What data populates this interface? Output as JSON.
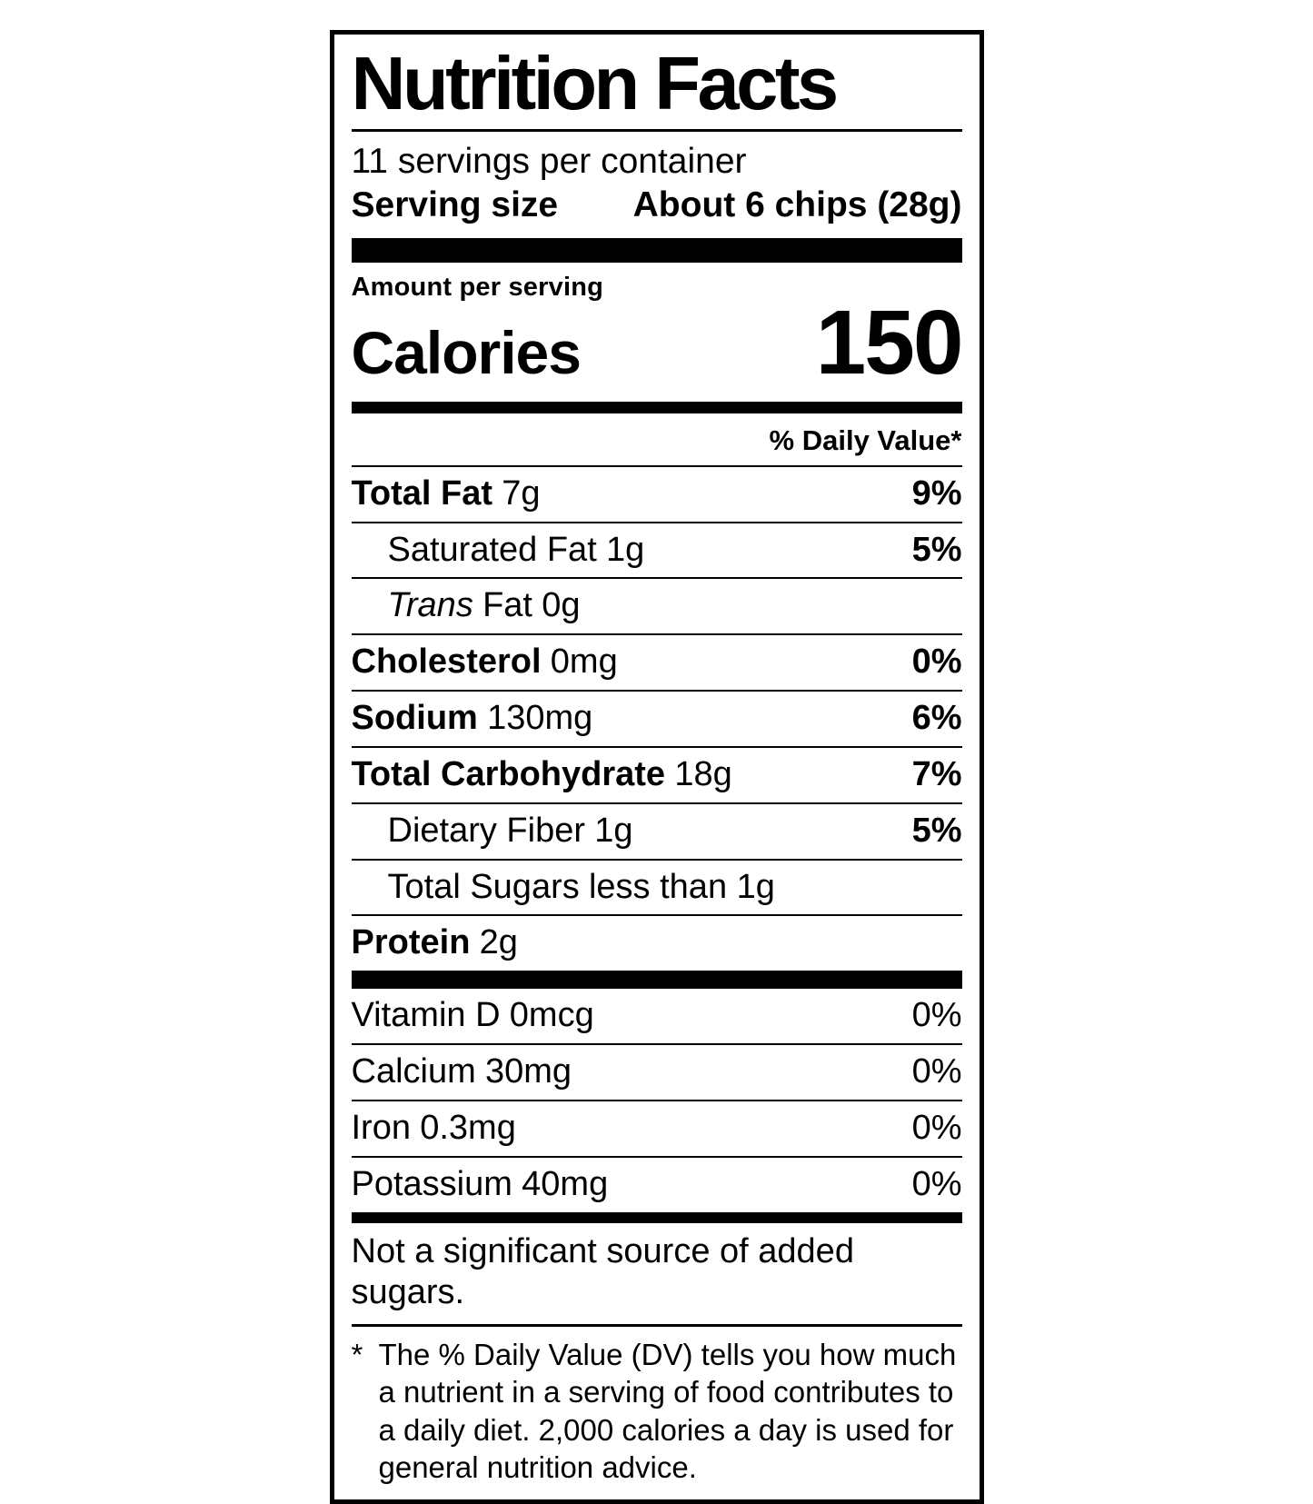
{
  "colors": {
    "ink": "#000000",
    "background": "#ffffff"
  },
  "label": {
    "title": "Nutrition Facts",
    "servings_per_container": "11 servings per container",
    "serving_size": {
      "label": "Serving size",
      "value": "About 6 chips (28g)"
    },
    "amount_per_serving": "Amount per serving",
    "calories": {
      "label": "Calories",
      "value": "150"
    },
    "daily_value_header": "% Daily Value*",
    "nutrients": [
      {
        "name": "Total Fat",
        "amount": "7g",
        "dv": "9%"
      },
      {
        "name": "Saturated Fat",
        "amount": "1g",
        "dv": "5%"
      },
      {
        "name_italic": "Trans",
        "name": "Fat",
        "amount": "0g",
        "dv": ""
      },
      {
        "name": "Cholesterol",
        "amount": "0mg",
        "dv": "0%"
      },
      {
        "name": "Sodium",
        "amount": "130mg",
        "dv": "6%"
      },
      {
        "name": "Total Carbohydrate",
        "amount": "18g",
        "dv": "7%"
      },
      {
        "name": "Dietary Fiber",
        "amount": "1g",
        "dv": "5%"
      },
      {
        "name": "Total Sugars",
        "amount": "less than 1g",
        "dv": ""
      },
      {
        "name": "Protein",
        "amount": "2g",
        "dv": ""
      }
    ],
    "micronutrients": [
      {
        "name": "Vitamin D",
        "amount": "0mcg",
        "dv": "0%"
      },
      {
        "name": "Calcium",
        "amount": "30mg",
        "dv": "0%"
      },
      {
        "name": "Iron",
        "amount": "0.3mg",
        "dv": "0%"
      },
      {
        "name": "Potassium",
        "amount": "40mg",
        "dv": "0%"
      }
    ],
    "added_sugars_note": "Not a significant source of added sugars.",
    "footnote": {
      "marker": "*",
      "text": "The % Daily Value (DV) tells you how much a nutrient in a serving of food contributes to a daily diet. 2,000 calories a day is used for general nutrition advice."
    }
  }
}
